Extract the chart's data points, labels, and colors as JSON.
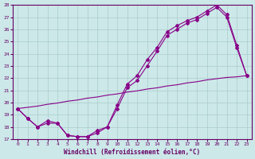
{
  "xlabel": "Windchill (Refroidissement éolien,°C)",
  "bg_color": "#cce8e8",
  "grid_color": "#aacccc",
  "line_color": "#880088",
  "xlim": [
    -0.5,
    23.5
  ],
  "ylim": [
    17,
    28
  ],
  "yticks": [
    17,
    18,
    19,
    20,
    21,
    22,
    23,
    24,
    25,
    26,
    27,
    28
  ],
  "xticks": [
    0,
    1,
    2,
    3,
    4,
    5,
    6,
    7,
    8,
    9,
    10,
    11,
    12,
    13,
    14,
    15,
    16,
    17,
    18,
    19,
    20,
    21,
    22,
    23
  ],
  "line1_x": [
    0,
    1,
    2,
    3,
    4,
    5,
    6,
    7,
    8,
    9,
    10,
    11,
    12,
    13,
    14,
    15,
    16,
    17,
    18,
    19,
    20,
    21,
    22,
    23
  ],
  "line1_y": [
    19.5,
    18.7,
    18.0,
    18.5,
    18.3,
    17.3,
    17.2,
    17.2,
    17.7,
    18.0,
    19.8,
    21.5,
    22.2,
    23.5,
    24.5,
    25.8,
    26.3,
    26.7,
    27.0,
    27.5,
    28.0,
    27.2,
    24.7,
    22.2
  ],
  "line2_x": [
    0,
    1,
    2,
    3,
    4,
    5,
    6,
    7,
    8,
    9,
    10,
    11,
    12,
    13,
    14,
    15,
    16,
    17,
    18,
    19,
    20,
    21,
    22,
    23
  ],
  "line2_y": [
    19.5,
    18.7,
    18.0,
    18.3,
    18.3,
    17.3,
    17.2,
    17.2,
    17.5,
    18.0,
    19.5,
    21.2,
    21.8,
    23.0,
    24.2,
    25.5,
    26.0,
    26.5,
    26.8,
    27.3,
    27.8,
    27.0,
    24.5,
    22.2
  ],
  "line3_x": [
    0,
    1,
    2,
    3,
    4,
    5,
    6,
    7,
    8,
    9,
    10,
    11,
    12,
    13,
    14,
    15,
    16,
    17,
    18,
    19,
    20,
    21,
    22,
    23
  ],
  "line3_y": [
    19.5,
    19.6,
    19.7,
    19.85,
    19.95,
    20.1,
    20.2,
    20.35,
    20.45,
    20.6,
    20.7,
    20.85,
    20.95,
    21.1,
    21.2,
    21.35,
    21.45,
    21.6,
    21.7,
    21.85,
    21.95,
    22.05,
    22.1,
    22.2
  ]
}
